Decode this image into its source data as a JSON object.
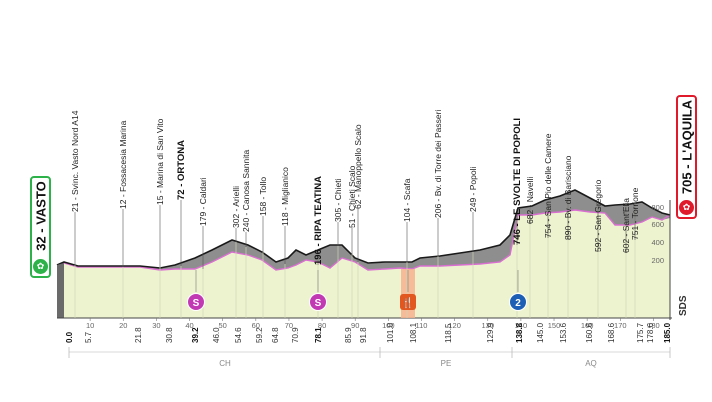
{
  "start": {
    "label": "32 - VASTO",
    "color": "#2db24a"
  },
  "finish": {
    "label": "705 - L'AQUILA",
    "color": "#e0192b"
  },
  "brand": "SDS",
  "colors": {
    "profile_fill": "#eef3cf",
    "upper_fill": "#8c8c8c",
    "line": "#d86fd0",
    "sprint": "#c23ab3",
    "kom": "#1d5fb4",
    "feed": "#f29a72"
  },
  "waypoints": [
    {
      "label": "21 - Svinc. Vasto Nord A14",
      "bold": false
    },
    {
      "label": "12 - Fossacesia Marina",
      "bold": false
    },
    {
      "label": "15 - Marina di San Vito",
      "bold": false
    },
    {
      "label": "72 - ORTONA",
      "bold": true
    },
    {
      "label": "179 - Caldari",
      "bold": false
    },
    {
      "label": "302 - Arielli",
      "bold": false
    },
    {
      "label": "240 - Canosa Sannita",
      "bold": false
    },
    {
      "label": "158 - Tollo",
      "bold": false
    },
    {
      "label": "118 - Miglianico",
      "bold": false
    },
    {
      "label": "196 - RIPA TEATINA",
      "bold": true
    },
    {
      "label": "305 - Chieti",
      "bold": false
    },
    {
      "label": "51 - Chieti Scalo",
      "bold": false
    },
    {
      "label": "62 - Manoppello Scalo",
      "bold": false
    },
    {
      "label": "104 - Scafa",
      "bold": false
    },
    {
      "label": "206 - Bv. di Torre dei Passeri",
      "bold": false
    },
    {
      "label": "249 - Popoli",
      "bold": false
    },
    {
      "label": "746 - LE SVOLTE DI POPOLI",
      "bold": true
    },
    {
      "label": "682 - Navelli",
      "bold": false
    },
    {
      "label": "754 - San Pio delle Camere",
      "bold": false
    },
    {
      "label": "890 - Bv. di Barisciano",
      "bold": false
    },
    {
      "label": "592 - San Gregorio",
      "bold": false
    },
    {
      "label": "602 - Sant'Elia",
      "bold": false
    },
    {
      "label": "751 - Torrione",
      "bold": false
    }
  ],
  "km_marks": [
    {
      "label": "0.0",
      "bold": true
    },
    {
      "label": "5.7",
      "bold": false
    },
    {
      "label": "21.8",
      "bold": false
    },
    {
      "label": "30.8",
      "bold": false
    },
    {
      "label": "39.2",
      "bold": true
    },
    {
      "label": "46.0",
      "bold": false
    },
    {
      "label": "54.6",
      "bold": false
    },
    {
      "label": "59.2",
      "bold": false
    },
    {
      "label": "64.8",
      "bold": false
    },
    {
      "label": "70.9",
      "bold": false
    },
    {
      "label": "78.1",
      "bold": true
    },
    {
      "label": "85.9",
      "bold": false
    },
    {
      "label": "91.8",
      "bold": false
    },
    {
      "label": "101.0",
      "bold": false
    },
    {
      "label": "108.1",
      "bold": false
    },
    {
      "label": "118.5",
      "bold": false
    },
    {
      "label": "129.9",
      "bold": false
    },
    {
      "label": "138.8",
      "bold": true
    },
    {
      "label": "145.0",
      "bold": false
    },
    {
      "label": "153.6",
      "bold": false
    },
    {
      "label": "160.6",
      "bold": false
    },
    {
      "label": "168.6",
      "bold": false
    },
    {
      "label": "175.7",
      "bold": false
    },
    {
      "label": "178.6",
      "bold": false
    },
    {
      "label": "185.0",
      "bold": true
    }
  ],
  "ticks": [
    "10",
    "20",
    "30",
    "40",
    "50",
    "60",
    "70",
    "80",
    "90",
    "100",
    "110",
    "120",
    "130",
    "140",
    "150",
    "160",
    "170",
    "180"
  ],
  "altitude_ticks": [
    "800",
    "600",
    "400",
    "200"
  ],
  "regions": [
    "CH",
    "PE",
    "AQ"
  ],
  "markers": [
    {
      "type": "sprint",
      "glyph": "S"
    },
    {
      "type": "sprint",
      "glyph": "S"
    },
    {
      "type": "feed",
      "glyph": "🍴"
    },
    {
      "type": "kom",
      "glyph": "2"
    }
  ]
}
